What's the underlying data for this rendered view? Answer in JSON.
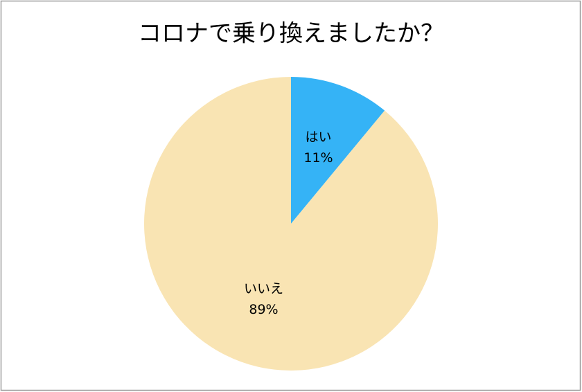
{
  "chart_data": {
    "type": "pie",
    "title": "コロナで乗り換えましたか？",
    "categories": [
      "はい",
      "いいえ"
    ],
    "values": [
      11,
      89
    ],
    "value_labels": [
      "11%",
      "89%"
    ],
    "colors": [
      "#35b3f6",
      "#f9e4b3"
    ]
  }
}
